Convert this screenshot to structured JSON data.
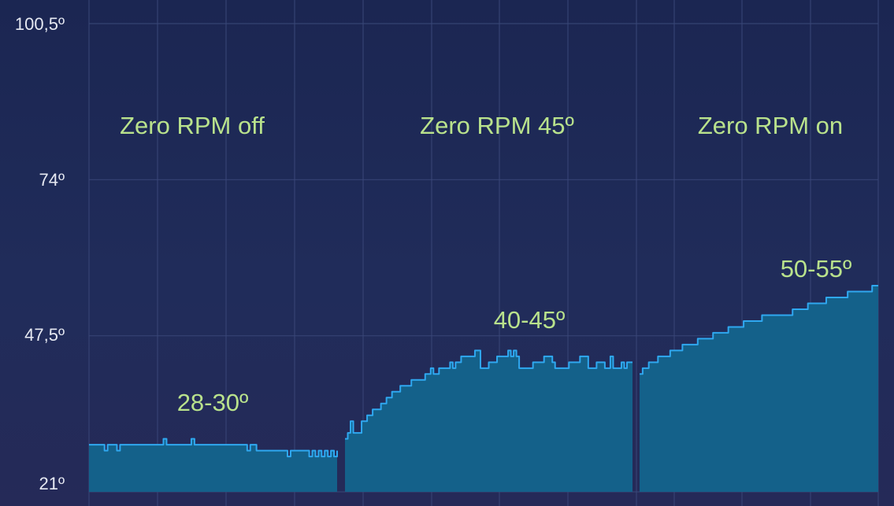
{
  "colors": {
    "background": "#1f2b55",
    "grid": "#3a4778",
    "area_fill": "#14618a",
    "line": "#2fa8f0",
    "label": "#b9e28c",
    "tick_text": "#e6e9f2"
  },
  "chart_data": {
    "type": "area",
    "title": "",
    "xlabel": "",
    "ylabel": "",
    "ylim": [
      21,
      100.5
    ],
    "grid": true,
    "y_ticks": [
      {
        "value": 21,
        "label": "21º"
      },
      {
        "value": 47.5,
        "label": "47,5º"
      },
      {
        "value": 74,
        "label": "74º"
      },
      {
        "value": 100.5,
        "label": "100,5º"
      }
    ],
    "sections": [
      {
        "name": "Zero RPM off",
        "range_label": "28-30º",
        "values": [
          29,
          29,
          29,
          29,
          29,
          28,
          29,
          29,
          29,
          28,
          29,
          29,
          29,
          29,
          29,
          29,
          29,
          29,
          29,
          29,
          29,
          29,
          29,
          29,
          30,
          29,
          29,
          29,
          29,
          29,
          29,
          29,
          29,
          30,
          29,
          29,
          29,
          29,
          29,
          29,
          29,
          29,
          29,
          29,
          29,
          29,
          29,
          29,
          29,
          29,
          29,
          28,
          29,
          29,
          28,
          28,
          28,
          28,
          28,
          28,
          28,
          28,
          28,
          28,
          27,
          28,
          28,
          28,
          28,
          28,
          28,
          27,
          28,
          27,
          28,
          27,
          28,
          27,
          28,
          27,
          28
        ]
      },
      {
        "name": "Zero RPM 45º",
        "range_label": "40-45º",
        "values": [
          30,
          31,
          33,
          31,
          31,
          31,
          33,
          33,
          34,
          34,
          35,
          35,
          35,
          36,
          36,
          37,
          37,
          38,
          38,
          38,
          39,
          39,
          39,
          39,
          40,
          40,
          40,
          40,
          40,
          41,
          41,
          42,
          41,
          41,
          42,
          42,
          42,
          42,
          43,
          42,
          43,
          43,
          44,
          44,
          44,
          44,
          44,
          45,
          45,
          42,
          42,
          42,
          43,
          43,
          43,
          44,
          44,
          44,
          44,
          45,
          44,
          45,
          44,
          42,
          42,
          42,
          42,
          42,
          43,
          43,
          43,
          43,
          44,
          44,
          44,
          43,
          42,
          42,
          42,
          42,
          42,
          43,
          43,
          43,
          43,
          44,
          44,
          44,
          42,
          42,
          42,
          43,
          43,
          43,
          42,
          42,
          44,
          42,
          42,
          42,
          43,
          42,
          43,
          43,
          43
        ]
      },
      {
        "name": "Zero RPM on",
        "range_label": "50-55º",
        "values": [
          41,
          42,
          42,
          43,
          43,
          43,
          44,
          44,
          44,
          44,
          45,
          45,
          45,
          45,
          46,
          46,
          46,
          46,
          46,
          47,
          47,
          47,
          47,
          47,
          48,
          48,
          48,
          48,
          48,
          49,
          49,
          49,
          49,
          49,
          50,
          50,
          50,
          50,
          50,
          50,
          51,
          51,
          51,
          51,
          51,
          51,
          51,
          51,
          51,
          51,
          52,
          52,
          52,
          52,
          52,
          53,
          53,
          53,
          53,
          53,
          53,
          54,
          54,
          54,
          54,
          54,
          54,
          54,
          55,
          55,
          55,
          55,
          55,
          55,
          55,
          55,
          56,
          56,
          56
        ]
      }
    ]
  }
}
